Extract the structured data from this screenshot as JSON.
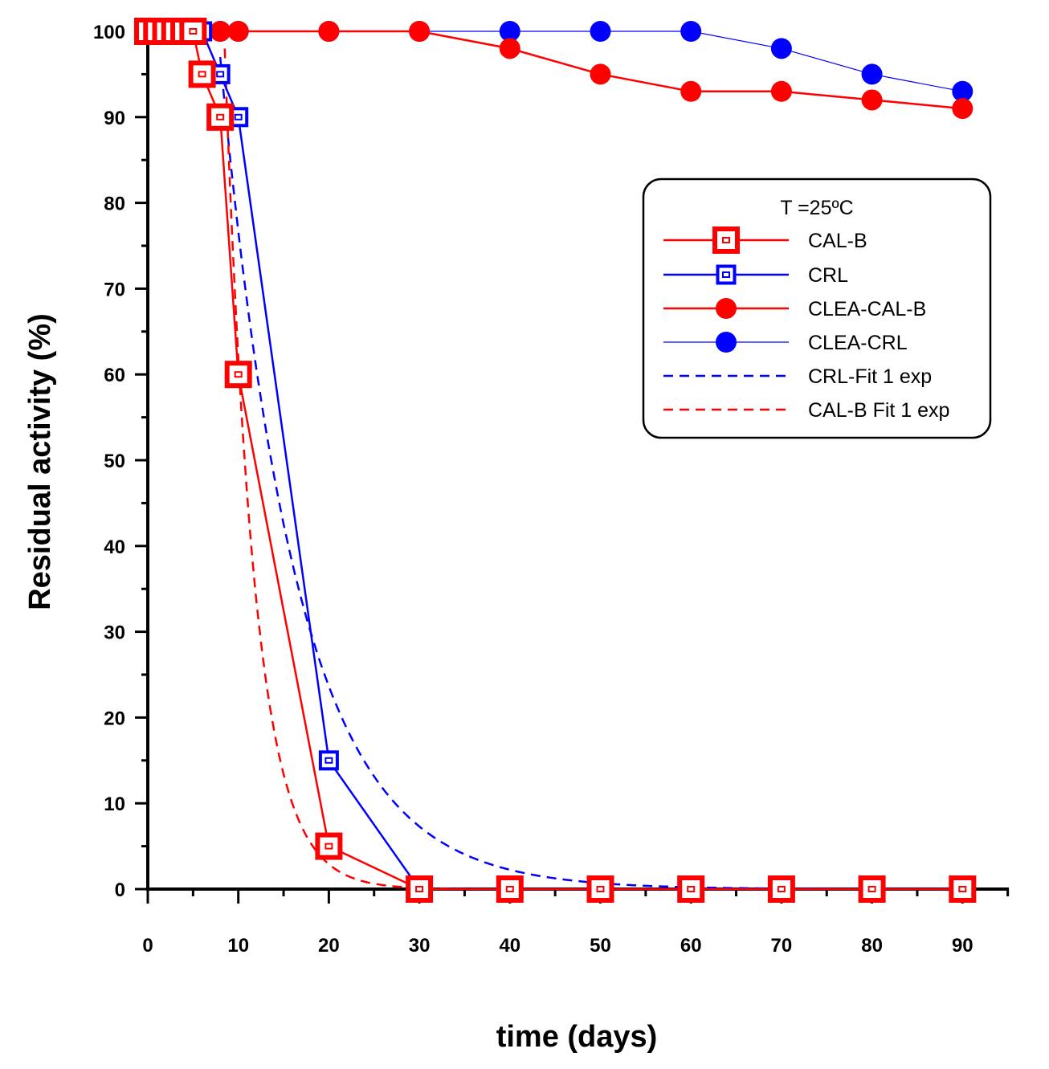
{
  "chart_data": {
    "type": "line",
    "xlabel": "time (days)",
    "ylabel": "Residual activity (%)",
    "xlim": [
      0,
      95
    ],
    "ylim": [
      0,
      100
    ],
    "xticks": [
      0,
      10,
      20,
      30,
      40,
      50,
      60,
      70,
      80,
      90
    ],
    "yticks": [
      0,
      10,
      20,
      30,
      40,
      50,
      60,
      70,
      80,
      90,
      100
    ],
    "grid": false,
    "legend": {
      "title": "T =25ºC",
      "placement": "right"
    },
    "series": [
      {
        "name": "CAL-B",
        "color": "#ff0000",
        "marker": "square-open",
        "line": "solid",
        "x": [
          0,
          1,
          2,
          3,
          4,
          5,
          6,
          8,
          10,
          20,
          30,
          40,
          50,
          60,
          70,
          80,
          90
        ],
        "y": [
          100,
          100,
          100,
          100,
          100,
          100,
          95,
          90,
          60,
          5,
          0,
          0,
          0,
          0,
          0,
          0,
          0
        ]
      },
      {
        "name": "CRL",
        "color": "#0000ff",
        "marker": "square-open",
        "line": "solid",
        "x": [
          0,
          1,
          2,
          3,
          4,
          5,
          6,
          8,
          10,
          20,
          30,
          40,
          50,
          60,
          70,
          80,
          90
        ],
        "y": [
          100,
          100,
          100,
          100,
          100,
          100,
          100,
          95,
          90,
          15,
          0,
          0,
          0,
          0,
          0,
          0,
          0
        ]
      },
      {
        "name": "CLEA-CAL-B",
        "color": "#ff0000",
        "marker": "circle-filled",
        "line": "solid",
        "x": [
          0,
          1,
          2,
          3,
          4,
          5,
          6,
          8,
          10,
          20,
          30,
          40,
          50,
          60,
          70,
          80,
          90
        ],
        "y": [
          100,
          100,
          100,
          100,
          100,
          100,
          100,
          100,
          100,
          100,
          100,
          98,
          95,
          93,
          93,
          92,
          91
        ]
      },
      {
        "name": "CLEA-CRL",
        "color": "#0000ff",
        "marker": "circle-filled",
        "line": "thin",
        "x": [
          0,
          1,
          2,
          3,
          4,
          5,
          6,
          8,
          10,
          20,
          30,
          40,
          50,
          60,
          70,
          80,
          90
        ],
        "y": [
          100,
          100,
          100,
          100,
          100,
          100,
          100,
          100,
          100,
          100,
          100,
          100,
          100,
          100,
          98,
          95,
          93
        ]
      },
      {
        "name": "CRL-Fit 1 exp",
        "color": "#0000ff",
        "marker": "none",
        "line": "dashed",
        "fit": {
          "model": "exponential",
          "x0": 8,
          "y0": 97,
          "k": 0.1176
        },
        "x": [
          8,
          10,
          12,
          14,
          16,
          18,
          20,
          25,
          30,
          35,
          40,
          45,
          50,
          55,
          60,
          65,
          70,
          75,
          80,
          85,
          90
        ],
        "y": [
          97,
          76.6,
          60.4,
          47.7,
          37.6,
          29.7,
          23.5,
          13.1,
          7.3,
          4.1,
          2.3,
          1.3,
          0.7,
          0.4,
          0.2,
          0.1,
          0.1,
          0,
          0,
          0,
          0
        ]
      },
      {
        "name": "CAL-B Fit 1 exp",
        "color": "#ff0000",
        "marker": "none",
        "line": "dashed",
        "fit": {
          "model": "exponential",
          "x0": 8.5,
          "y0": 98,
          "k": 0.306
        },
        "x": [
          8.5,
          9,
          10,
          11,
          12,
          13,
          14,
          15,
          16,
          17,
          18,
          19,
          20,
          22,
          24,
          26,
          28,
          30
        ],
        "y": [
          98,
          84,
          62,
          45.6,
          33.5,
          24.6,
          18.1,
          13.3,
          9.8,
          7.2,
          5.3,
          3.9,
          2.9,
          1.6,
          0.8,
          0.4,
          0.2,
          0.1
        ]
      }
    ]
  }
}
